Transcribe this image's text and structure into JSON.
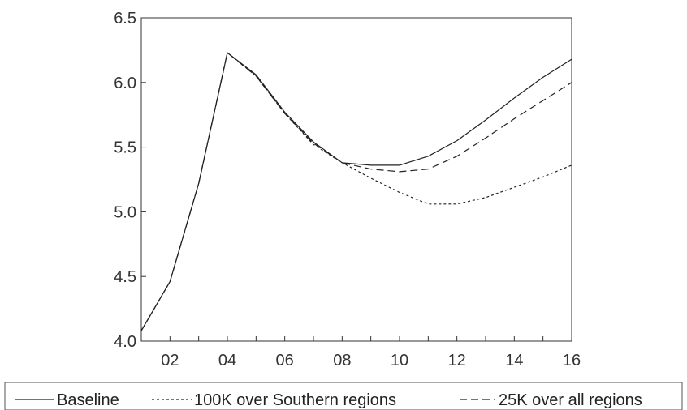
{
  "chart_data": {
    "type": "line",
    "title": "",
    "xlabel": "",
    "ylabel": "",
    "x": [
      1,
      2,
      3,
      4,
      5,
      6,
      7,
      8,
      9,
      10,
      11,
      12,
      13,
      14,
      15,
      16
    ],
    "xlim": [
      1,
      16
    ],
    "xticks": [
      2,
      4,
      6,
      8,
      10,
      12,
      14,
      16
    ],
    "xtick_labels": [
      "02",
      "04",
      "06",
      "08",
      "10",
      "12",
      "14",
      "16"
    ],
    "ylim": [
      4.0,
      6.5
    ],
    "yticks": [
      4.0,
      4.5,
      5.0,
      5.5,
      6.0,
      6.5
    ],
    "ytick_labels": [
      "4.0",
      "4.5",
      "5.0",
      "5.5",
      "6.0",
      "6.5"
    ],
    "grid": false,
    "legend_position": "bottom",
    "series": [
      {
        "name": "Baseline",
        "style": "solid",
        "color": "#222222",
        "values": [
          4.08,
          4.46,
          5.22,
          6.23,
          6.06,
          5.77,
          5.54,
          5.38,
          5.36,
          5.36,
          5.43,
          5.55,
          5.71,
          5.88,
          6.04,
          6.18
        ]
      },
      {
        "name": "100K over Southern regions",
        "style": "dotted",
        "color": "#222222",
        "values": [
          4.08,
          4.46,
          5.22,
          6.23,
          6.05,
          5.76,
          5.52,
          5.38,
          5.26,
          5.15,
          5.06,
          5.06,
          5.11,
          5.19,
          5.27,
          5.36
        ]
      },
      {
        "name": "25K over all regions",
        "style": "dashed",
        "color": "#222222",
        "values": [
          4.08,
          4.46,
          5.22,
          6.23,
          6.05,
          5.76,
          5.53,
          5.38,
          5.33,
          5.31,
          5.33,
          5.43,
          5.57,
          5.72,
          5.86,
          6.0
        ]
      }
    ]
  }
}
